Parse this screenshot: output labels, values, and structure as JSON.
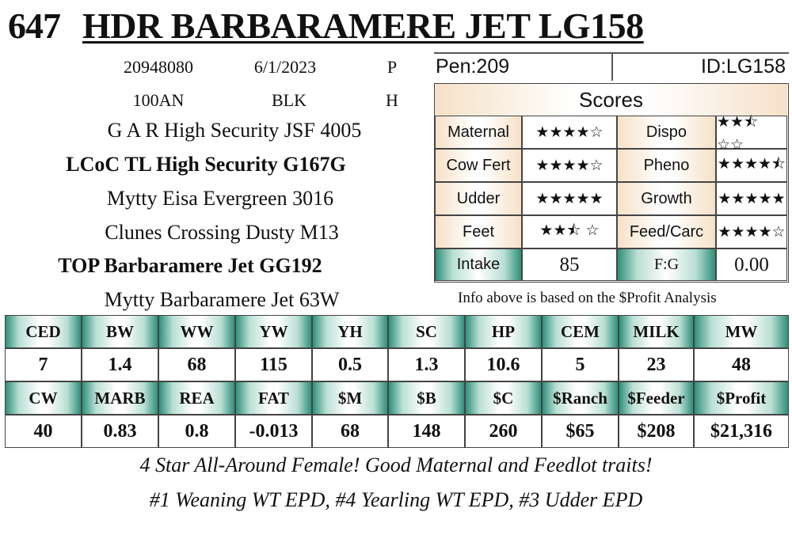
{
  "header": {
    "lot": "647",
    "name": "HDR BARBARAMERE JET LG158"
  },
  "info": {
    "reg": "20948080",
    "date": "6/1/2023",
    "p": "P",
    "tattoo": "100AN",
    "color": "BLK",
    "h": "H"
  },
  "pedigree": [
    "G A R High Security JSF 4005",
    "LCoC TL High Security G167G",
    "Mytty Eisa Evergreen 3016",
    "Clunes Crossing Dusty M13",
    "TOP Barbaramere Jet GG192",
    "Mytty Barbaramere Jet 63W"
  ],
  "pen": "Pen:209",
  "id": "ID:LG158",
  "scores": {
    "title": "Scores",
    "rows": [
      {
        "l1": "Maternal",
        "s1": "★★★★☆",
        "l2": "Dispo",
        "s2": "★★⯪ ☆☆"
      },
      {
        "l1": "Cow Fert",
        "s1": "★★★★☆",
        "l2": "Pheno",
        "s2": "★★★★⯪"
      },
      {
        "l1": "Udder",
        "s1": "★★★★★",
        "l2": "Growth",
        "s2": "★★★★★"
      },
      {
        "l1": "Feet",
        "s1": "★★⯪ ☆",
        "l2": "Feed/Carc",
        "s2": "★★★★☆"
      }
    ],
    "intake_label": "Intake",
    "intake_value": "85",
    "fg_label": "F:G",
    "fg_value": "0.00"
  },
  "basis": "Info above is based on the $Profit Analysis",
  "epd_row1": {
    "headers": [
      "CED",
      "BW",
      "WW",
      "YW",
      "YH",
      "SC",
      "HP",
      "CEM",
      "MILK",
      "MW"
    ],
    "values": [
      "7",
      "1.4",
      "68",
      "115",
      "0.5",
      "1.3",
      "10.6",
      "5",
      "23",
      "48"
    ]
  },
  "epd_row2": {
    "headers": [
      "CW",
      "MARB",
      "REA",
      "FAT",
      "$M",
      "$B",
      "$C",
      "$Ranch",
      "$Feeder",
      "$Profit"
    ],
    "values": [
      "40",
      "0.83",
      "0.8",
      "-0.013",
      "68",
      "148",
      "260",
      "$65",
      "$208",
      "$21,316"
    ]
  },
  "description": [
    "4 Star All-Around Female! Good Maternal and Feedlot traits!",
    "#1 Weaning WT EPD, #4 Yearling WT EPD, #3 Udder EPD"
  ]
}
